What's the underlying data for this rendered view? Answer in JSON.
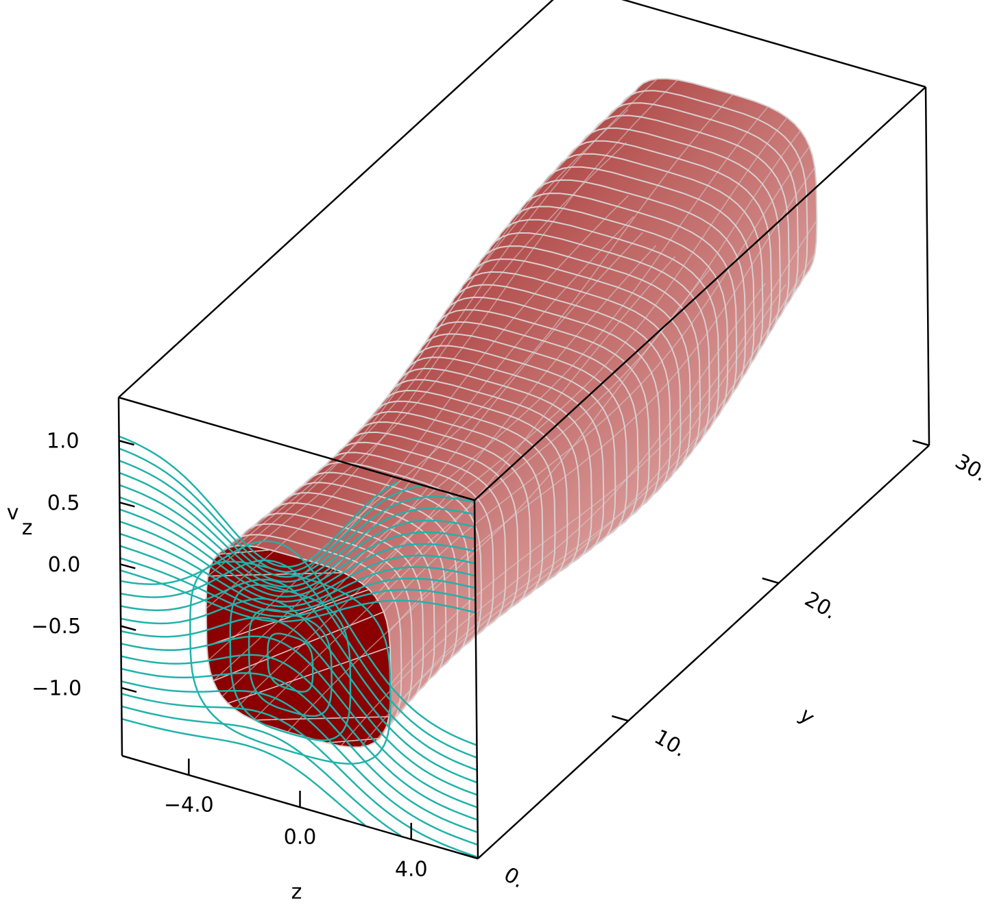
{
  "chart_data": {
    "type": "surface3d",
    "zlabel": "z",
    "ylabel": "y",
    "vlabel": {
      "text": "v",
      "sub": "z"
    },
    "zlim": [
      -6.4,
      6.4
    ],
    "ylim": [
      0,
      30
    ],
    "vlim": [
      -1.55,
      1.35
    ],
    "zticks": [
      {
        "value": -4,
        "label": "−4.0"
      },
      {
        "value": 0,
        "label": "0.0"
      },
      {
        "value": 4,
        "label": "4.0"
      }
    ],
    "yticks": [
      {
        "value": 0,
        "label": "0."
      },
      {
        "value": 10,
        "label": "10."
      },
      {
        "value": 20,
        "label": "20."
      },
      {
        "value": 30,
        "label": "30."
      }
    ],
    "vticks": [
      {
        "value": 1,
        "label": "1.0"
      },
      {
        "value": 0.5,
        "label": "0.5"
      },
      {
        "value": 0,
        "label": "0.0"
      },
      {
        "value": -0.5,
        "label": "−0.5"
      },
      {
        "value": -1,
        "label": "−1.0"
      }
    ],
    "surface_color": "#c0504d",
    "cap_color": "#8b0000",
    "contour_color": "#20b2aa"
  }
}
